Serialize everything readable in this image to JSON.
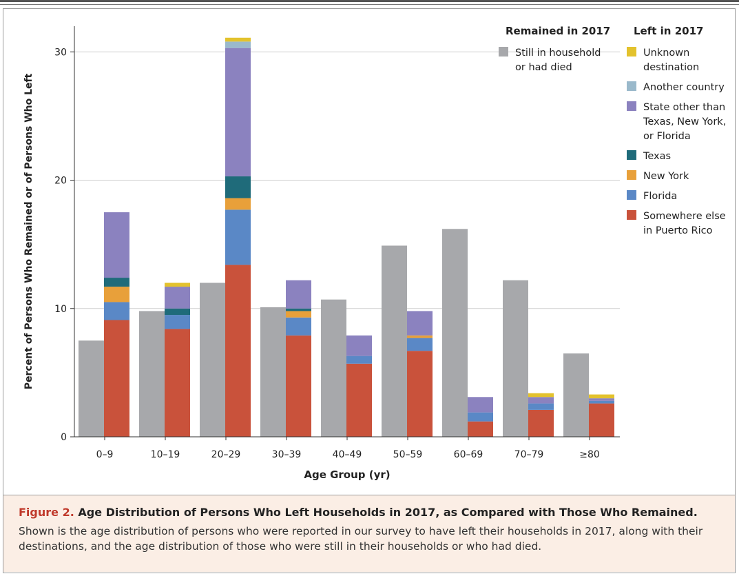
{
  "chart_data": {
    "type": "bar",
    "xlabel": "Age Group (yr)",
    "ylabel": "Percent of Persons Who Remained or of Persons Who Left",
    "ylim": [
      0,
      32
    ],
    "yticks": [
      0,
      10,
      20,
      30
    ],
    "grid": true,
    "categories": [
      "0–9",
      "10–19",
      "20–29",
      "30–39",
      "40–49",
      "50–59",
      "60–69",
      "70–79",
      "≥80"
    ],
    "remained": {
      "heading": "Remained in 2017",
      "series": [
        {
          "name": "Still in household or had died",
          "label_lines": [
            "Still in household",
            "or had died"
          ],
          "color": "#a7a8ab",
          "values": [
            7.5,
            9.8,
            12.0,
            10.1,
            10.7,
            14.9,
            16.2,
            12.2,
            6.5
          ]
        }
      ]
    },
    "left": {
      "heading": "Left in 2017",
      "series": [
        {
          "name": "Somewhere else in Puerto Rico",
          "label_lines": [
            "Somewhere else",
            "in Puerto Rico"
          ],
          "color": "#c9523b",
          "values": [
            9.1,
            8.4,
            13.4,
            7.9,
            5.7,
            6.7,
            1.2,
            2.1,
            2.6
          ]
        },
        {
          "name": "Florida",
          "label_lines": [
            "Florida"
          ],
          "color": "#5a88c6",
          "values": [
            1.4,
            1.1,
            4.3,
            1.4,
            0.6,
            1.0,
            0.7,
            0.5,
            0.2
          ]
        },
        {
          "name": "New York",
          "label_lines": [
            "New York"
          ],
          "color": "#e8a03a",
          "values": [
            1.2,
            0.0,
            0.9,
            0.5,
            0.0,
            0.2,
            0.0,
            0.0,
            0.0
          ]
        },
        {
          "name": "Texas",
          "label_lines": [
            "Texas"
          ],
          "color": "#1f6b7a",
          "values": [
            0.7,
            0.5,
            1.7,
            0.2,
            0.0,
            0.0,
            0.0,
            0.0,
            0.0
          ]
        },
        {
          "name": "State other than Texas, New York, or Florida",
          "label_lines": [
            "State other than",
            "Texas, New York,",
            "or Florida"
          ],
          "color": "#8b82bf",
          "values": [
            5.1,
            1.7,
            10.0,
            2.2,
            1.6,
            1.9,
            1.2,
            0.5,
            0.2
          ]
        },
        {
          "name": "Another country",
          "label_lines": [
            "Another country"
          ],
          "color": "#9ab9cb",
          "values": [
            0.0,
            0.0,
            0.5,
            0.0,
            0.0,
            0.0,
            0.0,
            0.0,
            0.0
          ]
        },
        {
          "name": "Unknown destination",
          "label_lines": [
            "Unknown",
            "destination"
          ],
          "color": "#e3c22d",
          "values": [
            0.0,
            0.3,
            0.3,
            0.0,
            0.0,
            0.0,
            0.0,
            0.3,
            0.3
          ]
        }
      ]
    }
  },
  "caption": {
    "label": "Figure 2.",
    "title": "Age Distribution of Persons Who Left Households in 2017, as Compared with Those Who Remained.",
    "body": "Shown is the age distribution of persons who were reported in our survey to have left their households in 2017, along with their destinations, and the age distribution of those who were still in their households or who had died."
  }
}
